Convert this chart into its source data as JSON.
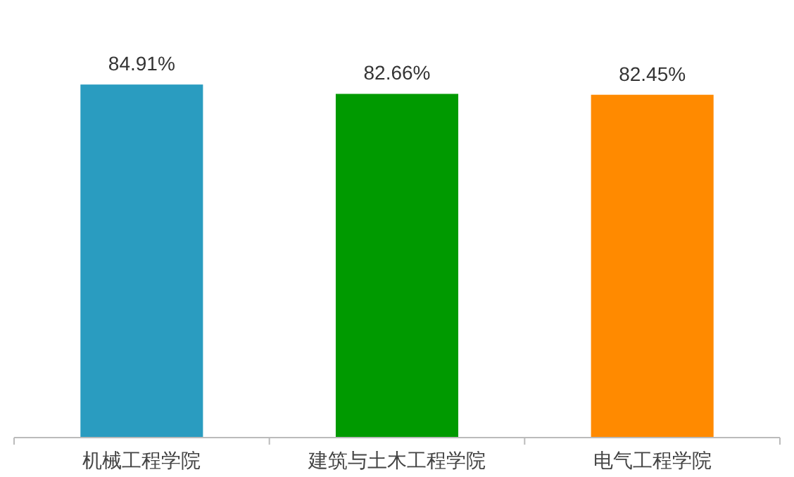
{
  "chart_data": {
    "type": "bar",
    "categories": [
      "机械工程学院",
      "建筑与土木工程学院",
      "电气工程学院"
    ],
    "values": [
      84.91,
      82.66,
      82.45
    ],
    "colors": [
      "#2a9cc0",
      "#009a00",
      "#ff8a00"
    ],
    "data_labels": true,
    "value_labels": [
      "84.91%",
      "82.66%",
      "82.45%"
    ]
  }
}
